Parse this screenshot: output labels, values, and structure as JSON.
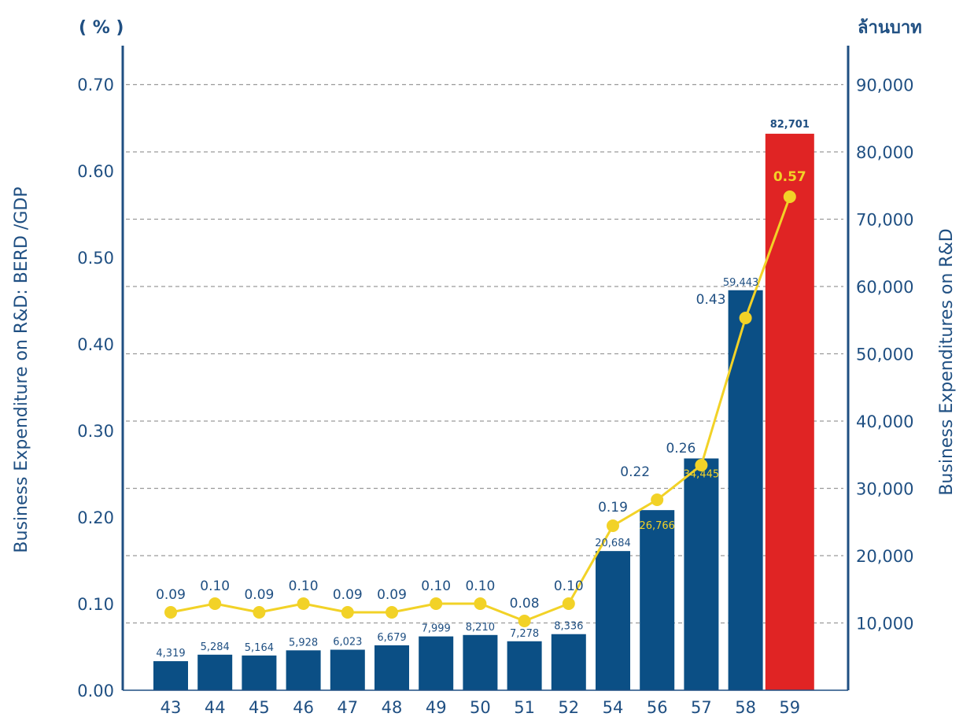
{
  "chart_data": {
    "type": "bar",
    "left_unit": "( % )",
    "right_unit": "ล้านบาท",
    "ylabel_left": "Business Expenditure on R&D: BERD /GDP",
    "ylabel_right": "Business Expenditures on R&D",
    "categories": [
      "43",
      "44",
      "45",
      "46",
      "47",
      "48",
      "49",
      "50",
      "51",
      "52",
      "54",
      "56",
      "57",
      "58",
      "59"
    ],
    "left_axis": {
      "ylim": [
        0,
        0.7
      ],
      "ticks": [
        "0.00",
        "0.10",
        "0.20",
        "0.30",
        "0.40",
        "0.50",
        "0.60",
        "0.70"
      ]
    },
    "right_axis": {
      "ticks": [
        "10,000",
        "20,000",
        "30,000",
        "40,000",
        "50,000",
        "60,000",
        "70,000",
        "80,000",
        "90,000"
      ]
    },
    "grid": true,
    "series": [
      {
        "kind": "bar",
        "axis": "right",
        "values": [
          4319,
          5284,
          5164,
          5928,
          6023,
          6679,
          7999,
          8210,
          7278,
          8336,
          20684,
          26766,
          34445,
          59443,
          82701
        ],
        "labels": [
          "4,319",
          "5,284",
          "5,164",
          "5,928",
          "6,023",
          "6,679",
          "7,999",
          "8,210",
          "7,278",
          "8,336",
          "20,684",
          "26,766",
          "34,445",
          "59,443",
          "82,701"
        ]
      },
      {
        "kind": "line",
        "axis": "left",
        "values": [
          0.09,
          0.1,
          0.09,
          0.1,
          0.09,
          0.09,
          0.1,
          0.1,
          0.08,
          0.1,
          0.19,
          0.22,
          0.26,
          0.43,
          0.57
        ],
        "labels": [
          "0.09",
          "0.10",
          "0.09",
          "0.10",
          "0.09",
          "0.09",
          "0.10",
          "0.10",
          "0.08",
          "0.10",
          "0.19",
          "0.22",
          "0.26",
          "0.43",
          "0.57"
        ]
      }
    ],
    "colors": {
      "bar": "#0b4f85",
      "highlight_bar": "#e02424",
      "line": "#f2d227",
      "axis": "#1f4f82",
      "grid": "#9a9a9a"
    }
  }
}
